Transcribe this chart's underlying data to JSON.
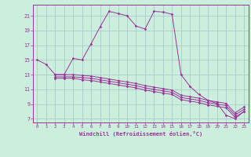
{
  "background_color": "#cceedd",
  "grid_color": "#aacccc",
  "line_color": "#993399",
  "xlim": [
    -0.5,
    23.5
  ],
  "ylim": [
    6.5,
    22.5
  ],
  "yticks": [
    7,
    9,
    11,
    13,
    15,
    17,
    19,
    21
  ],
  "xticks": [
    0,
    1,
    2,
    3,
    4,
    5,
    6,
    7,
    8,
    9,
    10,
    11,
    12,
    13,
    14,
    15,
    16,
    17,
    18,
    19,
    20,
    21,
    22,
    23
  ],
  "xlabel": "Windchill (Refroidissement éolien,°C)",
  "series1_x": [
    0,
    1,
    2,
    3,
    4,
    5,
    6,
    7,
    8,
    9,
    10,
    11,
    12,
    13,
    14,
    15,
    16,
    17,
    18,
    19,
    20,
    21,
    22,
    23
  ],
  "series1_y": [
    15.0,
    14.4,
    13.0,
    13.0,
    15.2,
    15.0,
    17.2,
    19.5,
    21.6,
    21.3,
    21.0,
    19.6,
    19.2,
    21.6,
    21.5,
    21.2,
    13.0,
    11.4,
    10.3,
    9.5,
    9.1,
    7.5,
    7.0,
    8.0
  ],
  "series2_x": [
    2,
    3,
    4,
    5,
    6,
    7,
    8,
    9,
    10,
    11,
    12,
    13,
    14,
    15,
    16,
    17,
    18,
    19,
    20,
    21,
    22,
    23
  ],
  "series2_y": [
    13.0,
    13.0,
    13.0,
    12.9,
    12.8,
    12.6,
    12.4,
    12.2,
    12.0,
    11.8,
    11.5,
    11.3,
    11.1,
    10.9,
    10.2,
    10.0,
    9.8,
    9.5,
    9.3,
    9.1,
    7.8,
    8.6
  ],
  "series3_x": [
    2,
    3,
    4,
    5,
    6,
    7,
    8,
    9,
    10,
    11,
    12,
    13,
    14,
    15,
    16,
    17,
    18,
    19,
    20,
    21,
    22,
    23
  ],
  "series3_y": [
    12.7,
    12.7,
    12.7,
    12.6,
    12.5,
    12.3,
    12.1,
    11.9,
    11.7,
    11.5,
    11.2,
    11.0,
    10.8,
    10.6,
    9.9,
    9.7,
    9.5,
    9.2,
    9.0,
    8.8,
    7.5,
    8.3
  ],
  "series4_x": [
    2,
    3,
    4,
    5,
    6,
    7,
    8,
    9,
    10,
    11,
    12,
    13,
    14,
    15,
    16,
    17,
    18,
    19,
    20,
    21,
    22,
    23
  ],
  "series4_y": [
    12.5,
    12.5,
    12.5,
    12.3,
    12.2,
    12.0,
    11.8,
    11.6,
    11.4,
    11.2,
    10.9,
    10.7,
    10.5,
    10.3,
    9.6,
    9.4,
    9.2,
    8.9,
    8.7,
    8.5,
    7.2,
    8.0
  ]
}
